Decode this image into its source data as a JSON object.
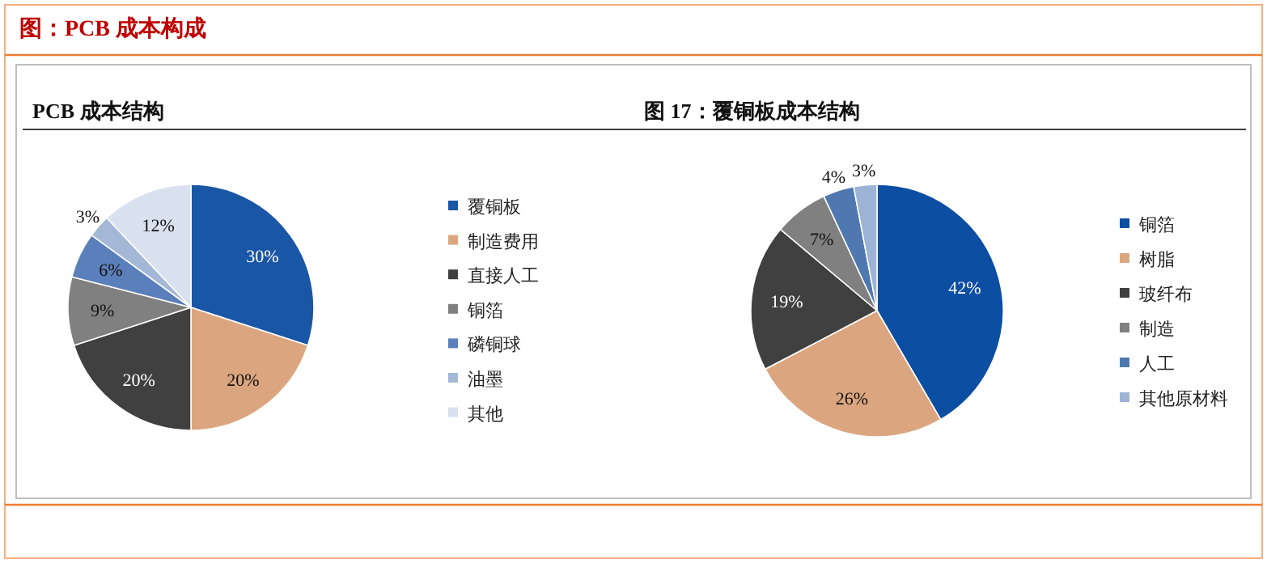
{
  "chart_data": [
    {
      "type": "pie",
      "title": "图：PCB 成本构成",
      "subtitle": "PCB 成本结构",
      "categories": [
        "覆铜板",
        "制造费用",
        "直接人工",
        "铜箔",
        "磷铜球",
        "油墨",
        "其他"
      ],
      "values": [
        30,
        20,
        20,
        9,
        6,
        3,
        12
      ],
      "colors": [
        "#1a56a6",
        "#dba67f",
        "#404040",
        "#808080",
        "#5b7fba",
        "#a3b7d6",
        "#d9e1ee"
      ],
      "value_labels": [
        "30%",
        "20%",
        "20%",
        "9%",
        "6%",
        "3%",
        "12%"
      ],
      "legend": "right"
    },
    {
      "type": "pie",
      "subtitle": "图 17：覆铜板成本结构",
      "categories": [
        "铜箔",
        "树脂",
        "玻纤布",
        "制造",
        "人工",
        "其他原材料"
      ],
      "values": [
        42,
        26,
        19,
        7,
        4,
        3
      ],
      "colors": [
        "#0b4ea2",
        "#dba67f",
        "#404040",
        "#808080",
        "#4f78b0",
        "#9db3d6"
      ],
      "value_labels": [
        "42%",
        "26%",
        "19%",
        "7%",
        "4%",
        "3%"
      ],
      "legend": "right"
    }
  ]
}
